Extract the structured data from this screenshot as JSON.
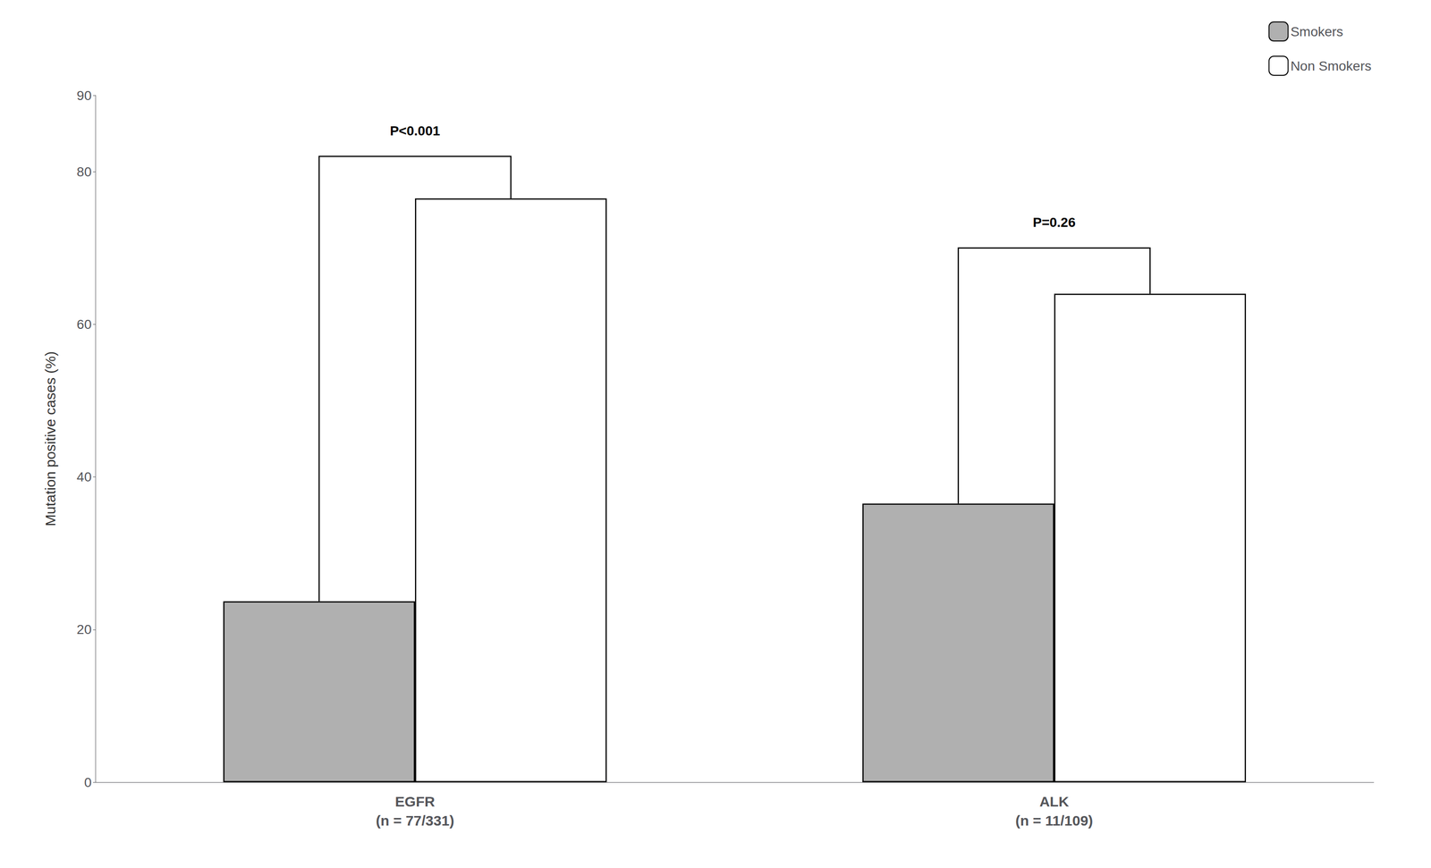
{
  "chart_data": {
    "type": "bar",
    "categories": [
      "EGFR\n(n = 77/331)",
      "ALK\n(n = 11/109)"
    ],
    "series": [
      {
        "name": "Smokers",
        "color": "#b0b0b0",
        "values": [
          23.7,
          36.5
        ]
      },
      {
        "name": "Non Smokers",
        "color": "#ffffff",
        "values": [
          76.5,
          64.0
        ]
      }
    ],
    "ylabel": "Mutation positive cases (%)",
    "ylim": [
      0,
      90
    ],
    "yticks": [
      0,
      20,
      40,
      60,
      80
    ],
    "grid": false,
    "legend": "upper right",
    "annotations": [
      {
        "text": "P<0.001",
        "category": "EGFR\n(n = 77/331)",
        "y_bracket": 82,
        "y_text": 84.5
      },
      {
        "text": "P=0.26",
        "category": "ALK\n(n = 11/109)",
        "y_bracket": 70,
        "y_text": 72.5
      }
    ]
  }
}
